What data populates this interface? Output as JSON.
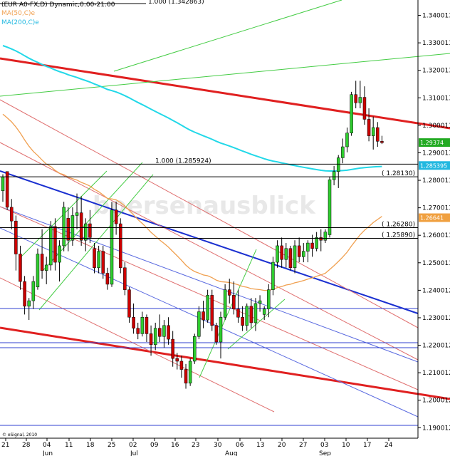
{
  "chart_data": {
    "type": "candlestick",
    "header": {
      "symbol": "(EUR A0-FX,D) Dynamic,0:00-21:00",
      "ma50": "MA(50,C)e",
      "ma200": "MA(200,C)e",
      "top_fib": "1.000 (1.342863)"
    },
    "copyright": "© eSignal, 2010",
    "watermark": "boersenausblick",
    "x_ticks": [
      "21",
      "28",
      "04",
      "11",
      "18",
      "25",
      "02",
      "09",
      "16",
      "23",
      "30",
      "06",
      "13",
      "20",
      "27",
      "03",
      "10",
      "17",
      "24"
    ],
    "months": [
      "Jun",
      "Jul",
      "Aug",
      "Sep"
    ],
    "y_ticks": [
      "1.340013",
      "1.330013",
      "1.320013",
      "1.310013",
      "1.300013",
      "1.290013",
      "1.280013",
      "1.270013",
      "1.260013",
      "1.250013",
      "1.240012",
      "1.230012",
      "1.220012",
      "1.210012",
      "1.200012",
      "1.190012"
    ],
    "ylim": [
      1.1862,
      1.3456
    ],
    "ohlc": [
      [
        1.2762,
        1.2822,
        1.2722,
        1.2812
      ],
      [
        1.2832,
        1.2832,
        1.2692,
        1.2702
      ],
      [
        1.2702,
        1.2732,
        1.2622,
        1.2652
      ],
      [
        1.2652,
        1.2672,
        1.2472,
        1.2532
      ],
      [
        1.2532,
        1.2562,
        1.2402,
        1.2432
      ],
      [
        1.2432,
        1.2452,
        1.2312,
        1.2342
      ],
      [
        1.2342,
        1.2372,
        1.2292,
        1.2362
      ],
      [
        1.2362,
        1.2452,
        1.2332,
        1.2432
      ],
      [
        1.2412,
        1.2552,
        1.2402,
        1.2532
      ],
      [
        1.2532,
        1.2622,
        1.2442,
        1.2472
      ],
      [
        1.2472,
        1.2522,
        1.2422,
        1.2492
      ],
      [
        1.2492,
        1.2652,
        1.2472,
        1.2632
      ],
      [
        1.2632,
        1.2662,
        1.2472,
        1.2502
      ],
      [
        1.2502,
        1.2582,
        1.2432,
        1.2562
      ],
      [
        1.2562,
        1.2722,
        1.2542,
        1.2702
      ],
      [
        1.2662,
        1.2702,
        1.2542,
        1.2582
      ],
      [
        1.2582,
        1.2702,
        1.2562,
        1.2672
      ],
      [
        1.2672,
        1.2752,
        1.2622,
        1.2682
      ],
      [
        1.2682,
        1.2742,
        1.2562,
        1.2582
      ],
      [
        1.2582,
        1.2662,
        1.2542,
        1.2642
      ],
      [
        1.2642,
        1.2692,
        1.2572,
        1.2592
      ],
      [
        1.2552,
        1.2572,
        1.2462,
        1.2482
      ],
      [
        1.2482,
        1.2562,
        1.2462,
        1.2542
      ],
      [
        1.2542,
        1.2562,
        1.2442,
        1.2462
      ],
      [
        1.2462,
        1.2482,
        1.2402,
        1.2422
      ],
      [
        1.2422,
        1.2722,
        1.2412,
        1.2692
      ],
      [
        1.2692,
        1.2722,
        1.2602,
        1.2642
      ],
      [
        1.2642,
        1.2662,
        1.2462,
        1.2482
      ],
      [
        1.2482,
        1.2502,
        1.2382,
        1.2402
      ],
      [
        1.2402,
        1.2412,
        1.2282,
        1.2302
      ],
      [
        1.2302,
        1.2352,
        1.2242,
        1.2262
      ],
      [
        1.2262,
        1.2282,
        1.2222,
        1.2242
      ],
      [
        1.2242,
        1.2322,
        1.2232,
        1.2302
      ],
      [
        1.2302,
        1.2312,
        1.2212,
        1.2242
      ],
      [
        1.2242,
        1.2272,
        1.2162,
        1.2202
      ],
      [
        1.2202,
        1.2282,
        1.2182,
        1.2262
      ],
      [
        1.2262,
        1.2312,
        1.2212,
        1.2232
      ],
      [
        1.2232,
        1.2292,
        1.2192,
        1.2272
      ],
      [
        1.2272,
        1.2302,
        1.2202,
        1.2222
      ],
      [
        1.2222,
        1.2252,
        1.2122,
        1.2152
      ],
      [
        1.2152,
        1.2172,
        1.2112,
        1.2142
      ],
      [
        1.2142,
        1.2162,
        1.2082,
        1.2112
      ],
      [
        1.2112,
        1.2132,
        1.2042,
        1.2062
      ],
      [
        1.2062,
        1.2152,
        1.2052,
        1.2142
      ],
      [
        1.2142,
        1.2242,
        1.2132,
        1.2232
      ],
      [
        1.2232,
        1.2342,
        1.2222,
        1.2322
      ],
      [
        1.2322,
        1.2362,
        1.2262,
        1.2292
      ],
      [
        1.2292,
        1.2402,
        1.2282,
        1.2382
      ],
      [
        1.2382,
        1.2402,
        1.2252,
        1.2272
      ],
      [
        1.2272,
        1.2282,
        1.2202,
        1.2212
      ],
      [
        1.2212,
        1.2322,
        1.2152,
        1.2302
      ],
      [
        1.2302,
        1.2422,
        1.2292,
        1.2402
      ],
      [
        1.2402,
        1.2442,
        1.2352,
        1.2382
      ],
      [
        1.2382,
        1.2432,
        1.2312,
        1.2332
      ],
      [
        1.2332,
        1.2402,
        1.2282,
        1.2302
      ],
      [
        1.2302,
        1.2342,
        1.2252,
        1.2272
      ],
      [
        1.2272,
        1.2352,
        1.2252,
        1.2342
      ],
      [
        1.2342,
        1.2372,
        1.2262,
        1.2282
      ],
      [
        1.2282,
        1.2372,
        1.2252,
        1.2352
      ],
      [
        1.2352,
        1.2382,
        1.2322,
        1.2362
      ],
      [
        1.2312,
        1.2342,
        1.2292,
        1.2332
      ],
      [
        1.2332,
        1.2422,
        1.2302,
        1.2402
      ],
      [
        1.2402,
        1.2522,
        1.2382,
        1.2502
      ],
      [
        1.2502,
        1.2582,
        1.2482,
        1.2562
      ],
      [
        1.2562,
        1.2592,
        1.2482,
        1.2512
      ],
      [
        1.2512,
        1.2572,
        1.2482,
        1.2552
      ],
      [
        1.2552,
        1.2562,
        1.2472,
        1.2482
      ],
      [
        1.2482,
        1.2582,
        1.2462,
        1.2562
      ],
      [
        1.2562,
        1.2592,
        1.2502,
        1.2522
      ],
      [
        1.2522,
        1.2572,
        1.2502,
        1.2542
      ],
      [
        1.2542,
        1.2582,
        1.2502,
        1.2572
      ],
      [
        1.2572,
        1.2602,
        1.2522,
        1.2552
      ],
      [
        1.2552,
        1.2612,
        1.2542,
        1.2592
      ],
      [
        1.2592,
        1.2622,
        1.2542,
        1.2582
      ],
      [
        1.2582,
        1.2622,
        1.2572,
        1.2612
      ],
      [
        1.2602,
        1.2812,
        1.2592,
        1.2802
      ],
      [
        1.2802,
        1.2852,
        1.2782,
        1.2832
      ],
      [
        1.2832,
        1.2892,
        1.2772,
        1.2882
      ],
      [
        1.2882,
        1.2952,
        1.2862,
        1.2922
      ],
      [
        1.2922,
        1.2992,
        1.2902,
        1.2972
      ],
      [
        1.2972,
        1.3122,
        1.2962,
        1.3112
      ],
      [
        1.3112,
        1.3162,
        1.3062,
        1.3082
      ],
      [
        1.3082,
        1.3162,
        1.3062,
        1.3102
      ],
      [
        1.3102,
        1.3142,
        1.3002,
        1.3022
      ],
      [
        1.3022,
        1.3062,
        1.2942,
        1.2962
      ],
      [
        1.2962,
        1.3032,
        1.2912,
        1.2992
      ],
      [
        1.2992,
        1.3012,
        1.2922,
        1.2942
      ],
      [
        1.2942,
        1.2962,
        1.2932,
        1.2937
      ]
    ],
    "levels": [
      {
        "label": "1.000 (1.285924)",
        "value": 1.2859
      },
      {
        "label": "1.28130",
        "value": 1.2813
      },
      {
        "label": "1.26280",
        "value": 1.2628
      },
      {
        "label": "1.25890",
        "value": 1.2589
      }
    ],
    "price_tags": [
      {
        "label": "1.29374",
        "value": 1.29374,
        "color": "#22aa22"
      },
      {
        "label": "1.285395",
        "value": 1.285395,
        "color": "#22b8e0"
      },
      {
        "label": "1.26641",
        "value": 1.26641,
        "color": "#f0a040"
      }
    ],
    "colors": {
      "up": "#2ecc2e",
      "down": "#cc0000",
      "ma50": "#f0a050",
      "ma200": "#22d8e8",
      "red_trend": "#e02020",
      "blue_trend": "#1a2fd0",
      "green": "#44cc44",
      "thin_red": "#e07070",
      "thin_blue": "#5a6ae0",
      "hline_blue": "#3040d0"
    }
  }
}
